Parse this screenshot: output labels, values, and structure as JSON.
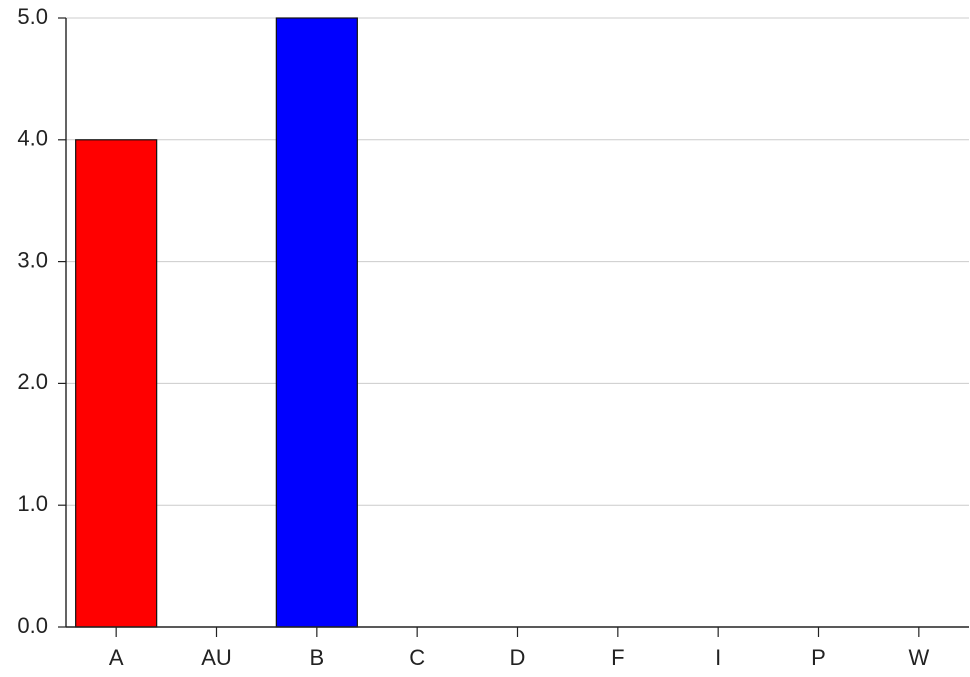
{
  "chart_data": {
    "type": "bar",
    "categories": [
      "A",
      "AU",
      "B",
      "C",
      "D",
      "F",
      "I",
      "P",
      "W"
    ],
    "values": [
      4,
      0,
      5,
      0,
      0,
      0,
      0,
      0,
      0
    ],
    "bar_colors": [
      "#ff0000",
      "#ff0000",
      "#0000ff",
      "#0000ff",
      "#0000ff",
      "#0000ff",
      "#0000ff",
      "#0000ff",
      "#0000ff"
    ],
    "y_ticks": [
      "0.0",
      "1.0",
      "2.0",
      "3.0",
      "4.0",
      "5.0"
    ],
    "ylim": [
      0,
      5
    ],
    "grid": "horizontal",
    "title": "",
    "xlabel": "",
    "ylabel": ""
  }
}
